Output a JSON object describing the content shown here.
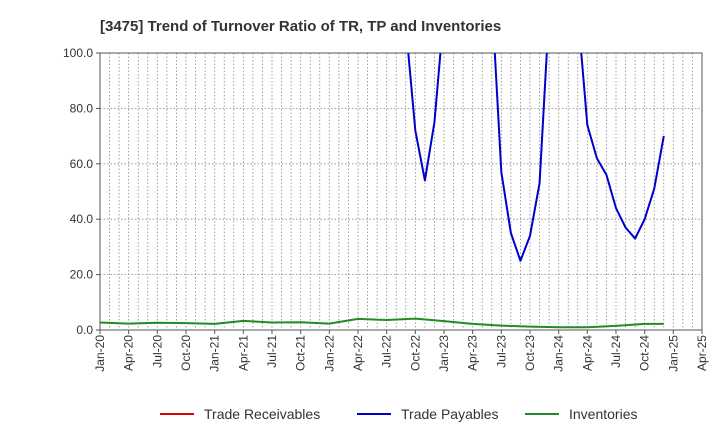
{
  "chart_data": {
    "type": "line",
    "title": "[3475]  Trend of Turnover Ratio of TR, TP and Inventories",
    "xlabel": "",
    "ylabel": "",
    "ylim": [
      0,
      100
    ],
    "yticks": [
      "0.0",
      "20.0",
      "40.0",
      "60.0",
      "80.0",
      "100.0"
    ],
    "xticks": [
      "Jan-20",
      "Apr-20",
      "Jul-20",
      "Oct-20",
      "Jan-21",
      "Apr-21",
      "Jul-21",
      "Oct-21",
      "Jan-22",
      "Apr-22",
      "Jul-22",
      "Oct-22",
      "Jan-23",
      "Apr-23",
      "Jul-23",
      "Oct-23",
      "Jan-24",
      "Apr-24",
      "Jul-24",
      "Oct-24",
      "Jan-25",
      "Apr-25"
    ],
    "grid": true,
    "legend_position": "bottom",
    "series": [
      {
        "name": "Trade Receivables",
        "color": "#dd0000",
        "points": []
      },
      {
        "name": "Trade Payables",
        "color": "#0000cc",
        "points": [
          [
            "Sep-22",
            110
          ],
          [
            "Oct-22",
            72
          ],
          [
            "Nov-22",
            54
          ],
          [
            "Dec-22",
            75
          ],
          [
            "Jan-23",
            115
          ],
          [
            "Jun-23",
            120
          ],
          [
            "Jul-23",
            57
          ],
          [
            "Aug-23",
            35
          ],
          [
            "Sep-23",
            25
          ],
          [
            "Oct-23",
            34
          ],
          [
            "Nov-23",
            53
          ],
          [
            "Dec-23",
            115
          ],
          [
            "Mar-24",
            115
          ],
          [
            "Apr-24",
            74
          ],
          [
            "May-24",
            62
          ],
          [
            "Jun-24",
            56
          ],
          [
            "Jul-24",
            44
          ],
          [
            "Aug-24",
            37
          ],
          [
            "Sep-24",
            33
          ],
          [
            "Oct-24",
            40
          ],
          [
            "Nov-24",
            51
          ],
          [
            "Dec-24",
            70
          ]
        ]
      },
      {
        "name": "Inventories",
        "color": "#228b22",
        "points": [
          [
            "Jan-20",
            2.7
          ],
          [
            "Apr-20",
            2.3
          ],
          [
            "Jul-20",
            2.6
          ],
          [
            "Oct-20",
            2.5
          ],
          [
            "Jan-21",
            2.2
          ],
          [
            "Apr-21",
            3.3
          ],
          [
            "Jul-21",
            2.7
          ],
          [
            "Oct-21",
            2.8
          ],
          [
            "Jan-22",
            2.3
          ],
          [
            "Apr-22",
            4.0
          ],
          [
            "Jul-22",
            3.6
          ],
          [
            "Oct-22",
            4.1
          ],
          [
            "Jan-23",
            3.2
          ],
          [
            "Apr-23",
            2.2
          ],
          [
            "Jul-23",
            1.6
          ],
          [
            "Oct-23",
            1.2
          ],
          [
            "Jan-24",
            1.0
          ],
          [
            "Apr-24",
            1.0
          ],
          [
            "Jul-24",
            1.5
          ],
          [
            "Oct-24",
            2.2
          ],
          [
            "Dec-24",
            2.2
          ]
        ]
      }
    ]
  }
}
